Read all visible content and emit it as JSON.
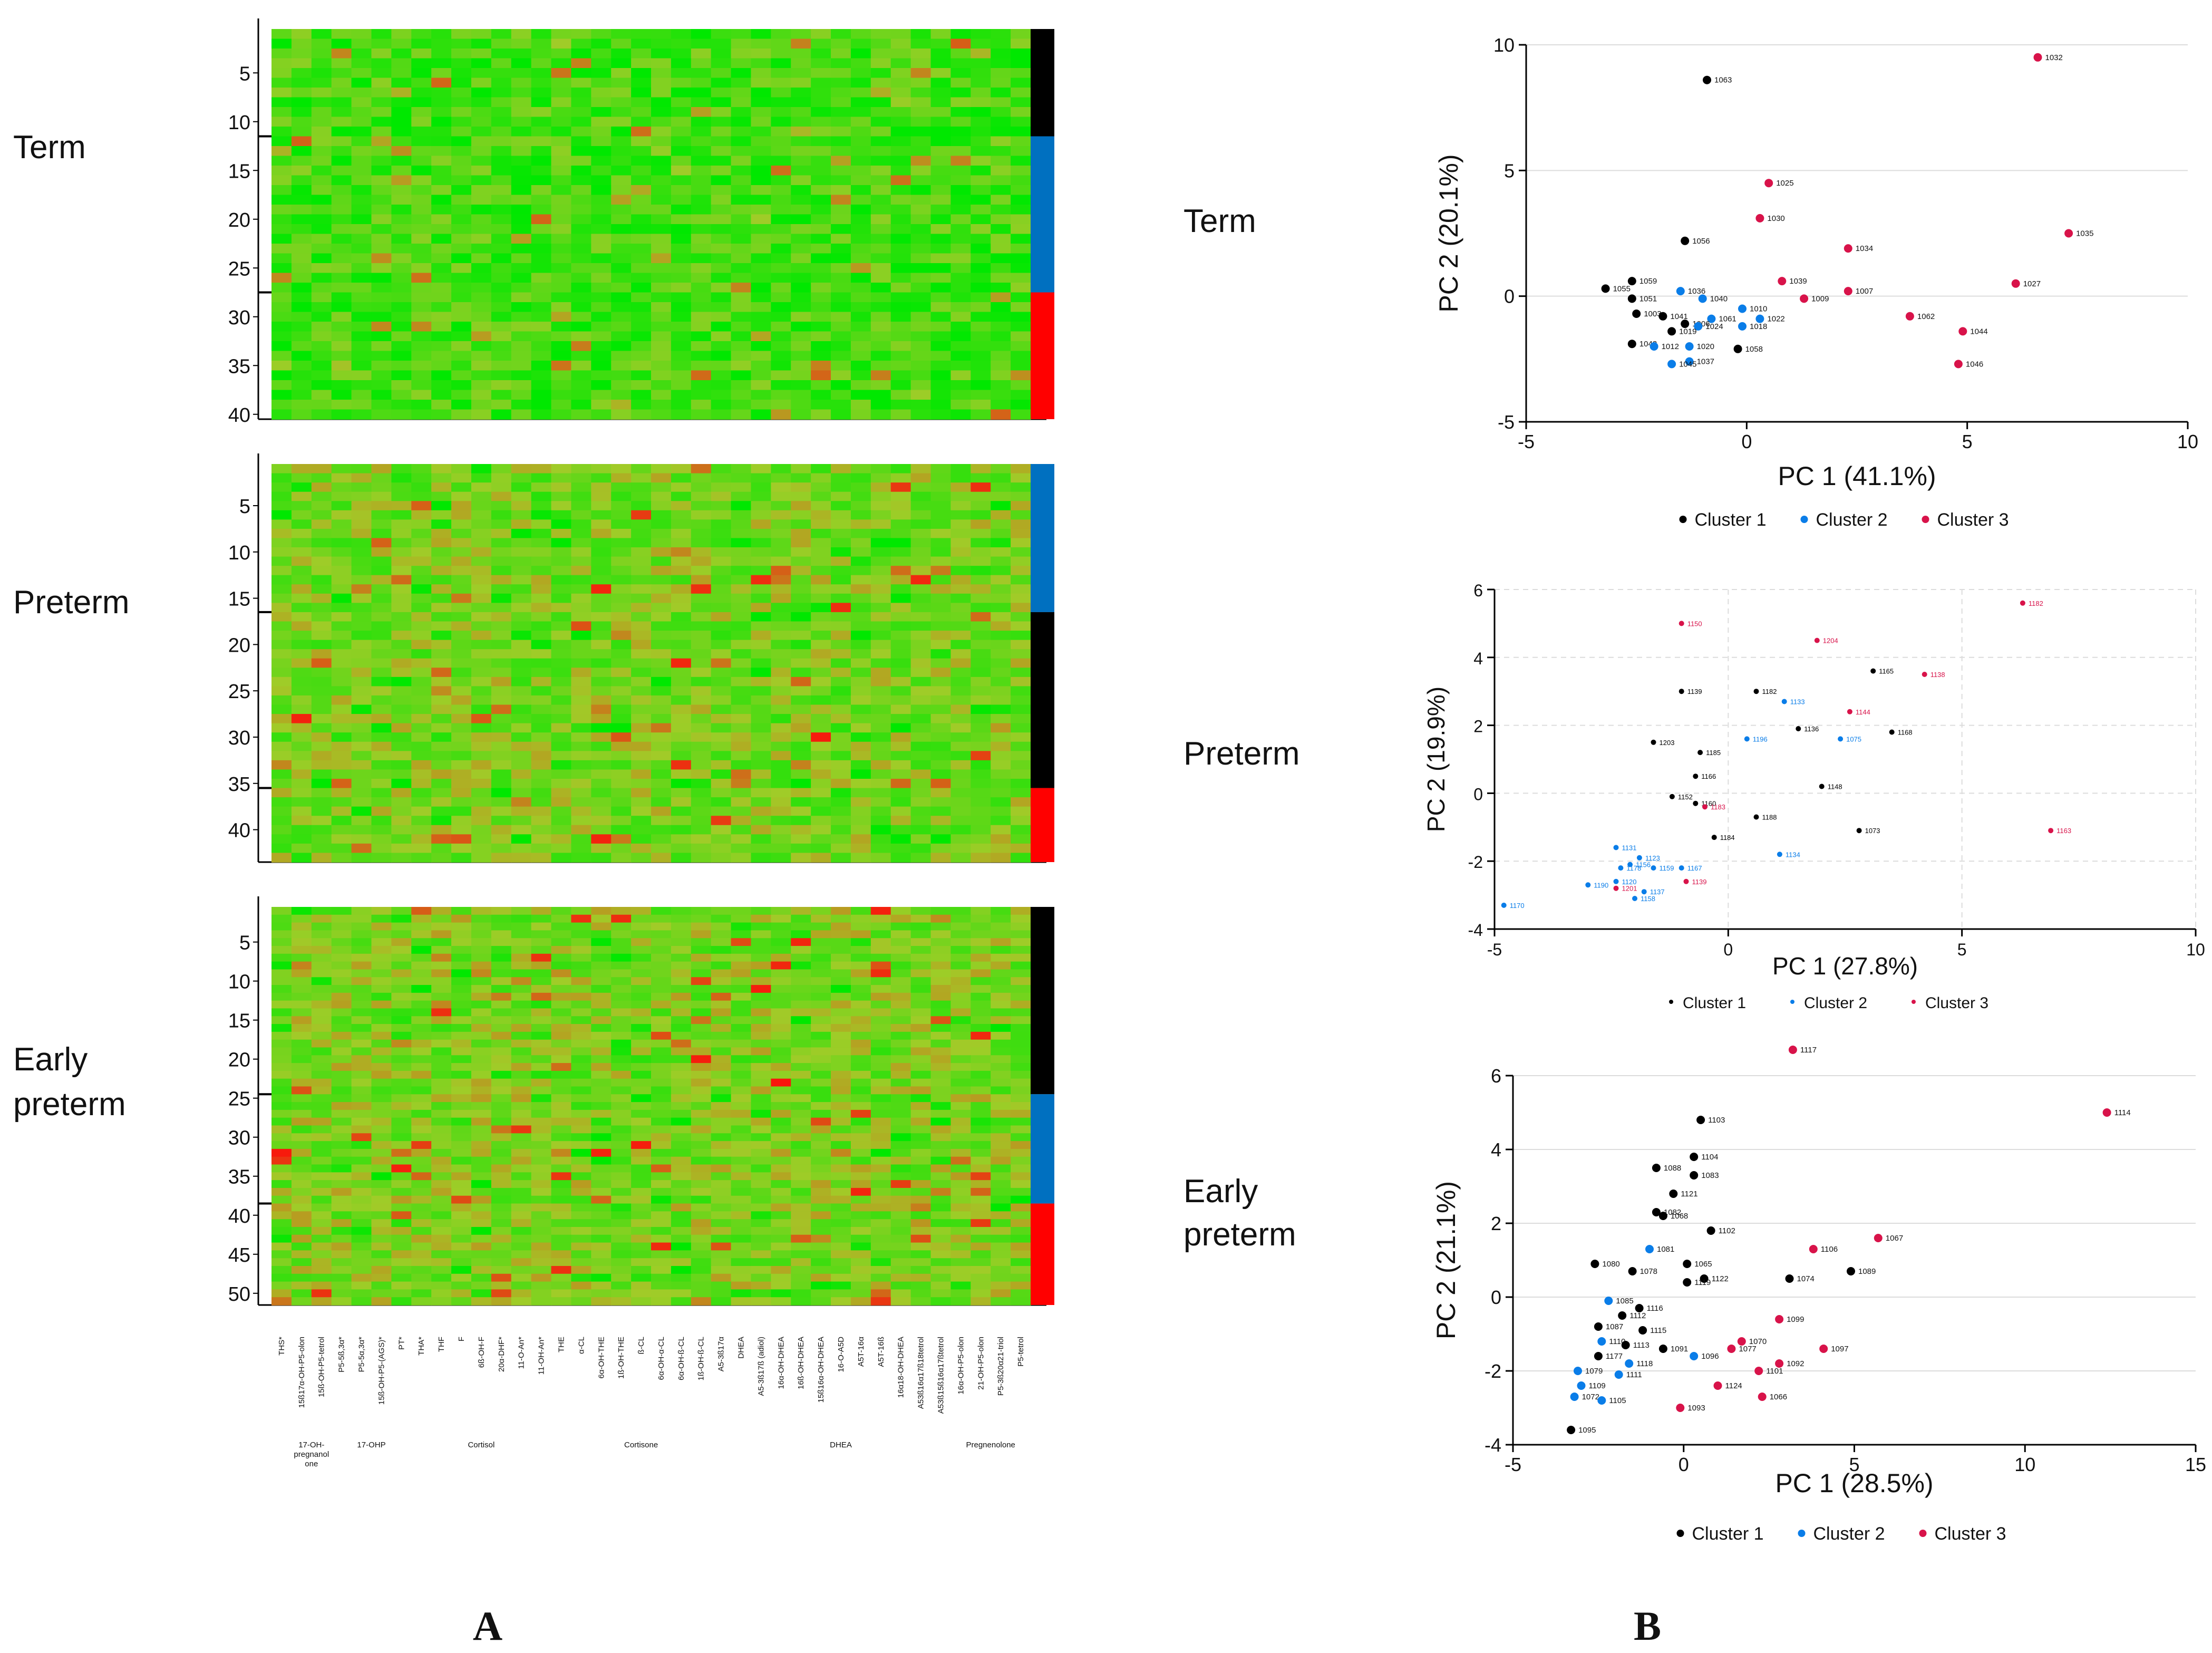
{
  "panel_a": {
    "letter": "A",
    "heatmaps": [
      {
        "group": [
          "Term"
        ],
        "yticks": [
          "5",
          "10",
          "15",
          "20",
          "25",
          "30",
          "35",
          "40"
        ],
        "rows": 40,
        "clusters": [
          {
            "color": "#000000",
            "n": 11
          },
          {
            "color": "#0070c0",
            "n": 16
          },
          {
            "color": "#ff0000",
            "n": 13
          }
        ]
      },
      {
        "group": [
          "Preterm"
        ],
        "yticks": [
          "5",
          "10",
          "15",
          "20",
          "25",
          "30",
          "35",
          "40"
        ],
        "rows": 43,
        "clusters": [
          {
            "color": "#0070c0",
            "n": 16
          },
          {
            "color": "#000000",
            "n": 19
          },
          {
            "color": "#ff0000",
            "n": 8
          }
        ]
      },
      {
        "group": [
          "Early",
          "preterm"
        ],
        "yticks": [
          "5",
          "10",
          "15",
          "20",
          "25",
          "30",
          "35",
          "40",
          "45",
          "50"
        ],
        "rows": 51,
        "clusters": [
          {
            "color": "#000000",
            "n": 24
          },
          {
            "color": "#0070c0",
            "n": 14
          },
          {
            "color": "#ff0000",
            "n": 13
          }
        ]
      }
    ],
    "columns": [
      "THS*",
      "15ß17α-OH-P5-olon",
      "15ß-OH-P5-tetrol",
      "P5-5ß,3α*",
      "P5-5α,3α*",
      "15ß-OH-P5-(AGS)*",
      "PT*",
      "THA*",
      "THF",
      "F",
      "6ß-OH-F",
      "20α-DHF*",
      "11-O-An*",
      "11-OH-An*",
      "THE",
      "α-CL",
      "6α-OH-THE",
      "1ß-OH-THE",
      "ß-CL",
      "6α-OH-α-CL",
      "6α-OH-ß-CL",
      "1ß-OH-ß-CL",
      "A5-3ß17α",
      "DHEA",
      "A5-3ß17ß (adiol)",
      "16α-OH-DHEA",
      "16ß-OH-DHEA",
      "15ß16α-OH-DHEA",
      "16-O-A5D",
      "A5T-16α",
      "A5T-16ß",
      "16α18-OH-DHEA",
      "A53ß16α17ß18tetrol",
      "A53ß15ß16α17ßtetrol",
      "16α-OH-P5-olon",
      "21-OH-P5-olon",
      "P5-3ß20α21-triol",
      "P5-tetrol"
    ],
    "column_groups": [
      {
        "label": [
          "17-OH-",
          "pregnanol",
          "one"
        ],
        "start": 1,
        "end": 2
      },
      {
        "label": [
          "17-OHP"
        ],
        "start": 3,
        "end": 6
      },
      {
        "label": [
          "Cortisol"
        ],
        "start": 7,
        "end": 13
      },
      {
        "label": [
          "Cortisone"
        ],
        "start": 14,
        "end": 22
      },
      {
        "label": [
          "DHEA"
        ],
        "start": 23,
        "end": 33
      },
      {
        "label": [
          "Pregnenolone"
        ],
        "start": 34,
        "end": 37
      }
    ]
  },
  "panel_b": {
    "letter": "B",
    "group_labels": [
      [
        "Term"
      ],
      [
        "Preterm"
      ],
      [
        "Early",
        "preterm"
      ]
    ],
    "cluster_colors": [
      "#000000",
      "#0a7de8",
      "#d8134a"
    ]
  },
  "chart_data": [
    {
      "type": "scatter",
      "title": "Term",
      "xlabel": "PC 1 (41.1%)",
      "ylabel": "PC 2 (20.1%)",
      "xlim": [
        -5,
        10
      ],
      "ylim": [
        -5,
        10
      ],
      "xticks": [
        -5,
        0,
        5,
        10
      ],
      "yticks": [
        -5,
        0,
        5,
        10
      ],
      "legend": [
        "Cluster 1",
        "Cluster 2",
        "Cluster 3"
      ],
      "grid": "dashed",
      "points": [
        {
          "label": "1063",
          "x": -0.9,
          "y": 8.6,
          "c": 1
        },
        {
          "label": "1032",
          "x": 6.6,
          "y": 9.5,
          "c": 3
        },
        {
          "label": "1025",
          "x": 0.5,
          "y": 4.5,
          "c": 3
        },
        {
          "label": "1030",
          "x": 0.3,
          "y": 3.1,
          "c": 3
        },
        {
          "label": "1035",
          "x": 7.3,
          "y": 2.5,
          "c": 3
        },
        {
          "label": "1056",
          "x": -1.4,
          "y": 2.2,
          "c": 1
        },
        {
          "label": "1034",
          "x": 2.3,
          "y": 1.9,
          "c": 3
        },
        {
          "label": "1059",
          "x": -2.6,
          "y": 0.6,
          "c": 1
        },
        {
          "label": "1039",
          "x": 0.8,
          "y": 0.6,
          "c": 3
        },
        {
          "label": "1027",
          "x": 6.1,
          "y": 0.5,
          "c": 3
        },
        {
          "label": "1055",
          "x": -3.2,
          "y": 0.3,
          "c": 1
        },
        {
          "label": "1036",
          "x": -1.5,
          "y": 0.2,
          "c": 2
        },
        {
          "label": "1007",
          "x": 2.3,
          "y": 0.2,
          "c": 3
        },
        {
          "label": "1051",
          "x": -2.6,
          "y": -0.1,
          "c": 1
        },
        {
          "label": "1040",
          "x": -1.0,
          "y": -0.1,
          "c": 2
        },
        {
          "label": "1009",
          "x": 1.3,
          "y": -0.1,
          "c": 3
        },
        {
          "label": "1010",
          "x": -0.1,
          "y": -0.5,
          "c": 2
        },
        {
          "label": "1003",
          "x": -2.5,
          "y": -0.7,
          "c": 1
        },
        {
          "label": "1062",
          "x": 3.7,
          "y": -0.8,
          "c": 3
        },
        {
          "label": "1041",
          "x": -1.9,
          "y": -0.8,
          "c": 1
        },
        {
          "label": "1061",
          "x": -0.8,
          "y": -0.9,
          "c": 2
        },
        {
          "label": "1022",
          "x": 0.3,
          "y": -0.9,
          "c": 2
        },
        {
          "label": "1006",
          "x": -1.4,
          "y": -1.1,
          "c": 1
        },
        {
          "label": "1024",
          "x": -1.1,
          "y": -1.2,
          "c": 2
        },
        {
          "label": "1018",
          "x": -0.1,
          "y": -1.2,
          "c": 2
        },
        {
          "label": "1019",
          "x": -1.7,
          "y": -1.4,
          "c": 1
        },
        {
          "label": "1044",
          "x": 4.9,
          "y": -1.4,
          "c": 3
        },
        {
          "label": "1043",
          "x": -2.6,
          "y": -1.9,
          "c": 1
        },
        {
          "label": "1012",
          "x": -2.1,
          "y": -2.0,
          "c": 2
        },
        {
          "label": "1020",
          "x": -1.3,
          "y": -2.0,
          "c": 2
        },
        {
          "label": "1058",
          "x": -0.2,
          "y": -2.1,
          "c": 1
        },
        {
          "label": "1037",
          "x": -1.3,
          "y": -2.6,
          "c": 2
        },
        {
          "label": "1045",
          "x": -1.7,
          "y": -2.7,
          "c": 2
        },
        {
          "label": "1046",
          "x": 4.8,
          "y": -2.7,
          "c": 3
        }
      ]
    },
    {
      "type": "scatter",
      "title": "Preterm",
      "xlabel": "PC 1 (27.8%)",
      "ylabel": "PC 2 (19.9%)",
      "xlim": [
        -5,
        10
      ],
      "ylim": [
        -4,
        6
      ],
      "xticks": [
        -5,
        0,
        5,
        10
      ],
      "yticks": [
        -4,
        -2,
        0,
        2,
        4,
        6
      ],
      "legend": [
        "Cluster 1",
        "Cluster 2",
        "Cluster 3"
      ],
      "grid": "dashed",
      "points": [
        {
          "label": "1182",
          "x": 6.3,
          "y": 5.6,
          "c": 3
        },
        {
          "label": "1150",
          "x": -1.0,
          "y": 5.0,
          "c": 3
        },
        {
          "label": "1204",
          "x": 1.9,
          "y": 4.5,
          "c": 3
        },
        {
          "label": "1165",
          "x": 3.1,
          "y": 3.6,
          "c": 1
        },
        {
          "label": "1138",
          "x": 4.2,
          "y": 3.5,
          "c": 3
        },
        {
          "label": "1139",
          "x": -1.0,
          "y": 3.0,
          "c": 1
        },
        {
          "label": "1182",
          "x": 0.6,
          "y": 3.0,
          "c": 1
        },
        {
          "label": "1133",
          "x": 1.2,
          "y": 2.7,
          "c": 2
        },
        {
          "label": "1144",
          "x": 2.6,
          "y": 2.4,
          "c": 3
        },
        {
          "label": "1136",
          "x": 1.5,
          "y": 1.9,
          "c": 1
        },
        {
          "label": "1168",
          "x": 3.5,
          "y": 1.8,
          "c": 1
        },
        {
          "label": "1075",
          "x": 2.4,
          "y": 1.6,
          "c": 2
        },
        {
          "label": "1203",
          "x": -1.6,
          "y": 1.5,
          "c": 1
        },
        {
          "label": "1196",
          "x": 0.4,
          "y": 1.6,
          "c": 2
        },
        {
          "label": "1185",
          "x": -0.6,
          "y": 1.2,
          "c": 1
        },
        {
          "label": "1166",
          "x": -0.7,
          "y": 0.5,
          "c": 1
        },
        {
          "label": "1148",
          "x": 2.0,
          "y": 0.2,
          "c": 1
        },
        {
          "label": "1152",
          "x": -1.2,
          "y": -0.1,
          "c": 1
        },
        {
          "label": "1160",
          "x": -0.7,
          "y": -0.3,
          "c": 1
        },
        {
          "label": "1183",
          "x": -0.5,
          "y": -0.4,
          "c": 3
        },
        {
          "label": "1188",
          "x": 0.6,
          "y": -0.7,
          "c": 1
        },
        {
          "label": "1163",
          "x": 6.9,
          "y": -1.1,
          "c": 3
        },
        {
          "label": "1073",
          "x": 2.8,
          "y": -1.1,
          "c": 1
        },
        {
          "label": "1184",
          "x": -0.3,
          "y": -1.3,
          "c": 1
        },
        {
          "label": "1131",
          "x": -2.4,
          "y": -1.6,
          "c": 2
        },
        {
          "label": "1123",
          "x": -1.9,
          "y": -1.9,
          "c": 2
        },
        {
          "label": "1134",
          "x": 1.1,
          "y": -1.8,
          "c": 2
        },
        {
          "label": "1156",
          "x": -2.1,
          "y": -2.1,
          "c": 2
        },
        {
          "label": "1178",
          "x": -2.3,
          "y": -2.2,
          "c": 2
        },
        {
          "label": "1159",
          "x": -1.6,
          "y": -2.2,
          "c": 2
        },
        {
          "label": "1167",
          "x": -1.0,
          "y": -2.2,
          "c": 2
        },
        {
          "label": "1190",
          "x": -3.0,
          "y": -2.7,
          "c": 2
        },
        {
          "label": "1120",
          "x": -2.4,
          "y": -2.6,
          "c": 2
        },
        {
          "label": "1201",
          "x": -2.4,
          "y": -2.8,
          "c": 3
        },
        {
          "label": "1137",
          "x": -1.8,
          "y": -2.9,
          "c": 2
        },
        {
          "label": "1139",
          "x": -0.9,
          "y": -2.6,
          "c": 3
        },
        {
          "label": "1158",
          "x": -2.0,
          "y": -3.1,
          "c": 2
        },
        {
          "label": "1170",
          "x": -4.8,
          "y": -3.3,
          "c": 2
        }
      ]
    },
    {
      "type": "scatter",
      "title": "Early preterm",
      "xlabel": "PC 1 (28.5%)",
      "ylabel": "PC 2 (21.1%)",
      "xlim": [
        -5,
        15
      ],
      "ylim": [
        -4,
        6
      ],
      "xticks": [
        -5,
        0,
        5,
        10,
        15
      ],
      "yticks": [
        -4,
        -2,
        0,
        2,
        4,
        6
      ],
      "legend": [
        "Cluster 1",
        "Cluster 2",
        "Cluster 3"
      ],
      "grid": "dashed",
      "points": [
        {
          "label": "1117",
          "x": 3.2,
          "y": 6.7,
          "c": 3
        },
        {
          "label": "1114",
          "x": 12.4,
          "y": 5.0,
          "c": 3
        },
        {
          "label": "1103",
          "x": 0.5,
          "y": 4.8,
          "c": 1
        },
        {
          "label": "1104",
          "x": 0.3,
          "y": 3.8,
          "c": 1
        },
        {
          "label": "1088",
          "x": -0.8,
          "y": 3.5,
          "c": 1
        },
        {
          "label": "1083",
          "x": 0.3,
          "y": 3.3,
          "c": 1
        },
        {
          "label": "1121",
          "x": -0.3,
          "y": 2.8,
          "c": 1
        },
        {
          "label": "1082",
          "x": -0.8,
          "y": 2.3,
          "c": 1
        },
        {
          "label": "1068",
          "x": -0.6,
          "y": 2.2,
          "c": 1
        },
        {
          "label": "1102",
          "x": 0.8,
          "y": 1.8,
          "c": 1
        },
        {
          "label": "1067",
          "x": 5.7,
          "y": 1.6,
          "c": 3
        },
        {
          "label": "1081",
          "x": -1.0,
          "y": 1.3,
          "c": 2
        },
        {
          "label": "1106",
          "x": 3.8,
          "y": 1.3,
          "c": 3
        },
        {
          "label": "1080",
          "x": -2.6,
          "y": 0.9,
          "c": 1
        },
        {
          "label": "1065",
          "x": 0.1,
          "y": 0.9,
          "c": 1
        },
        {
          "label": "1089",
          "x": 4.9,
          "y": 0.7,
          "c": 1
        },
        {
          "label": "1078",
          "x": -1.5,
          "y": 0.7,
          "c": 1
        },
        {
          "label": "1074",
          "x": 3.1,
          "y": 0.5,
          "c": 1
        },
        {
          "label": "1122",
          "x": 0.6,
          "y": 0.5,
          "c": 1
        },
        {
          "label": "1119",
          "x": 0.1,
          "y": 0.4,
          "c": 1
        },
        {
          "label": "1085",
          "x": -2.2,
          "y": -0.1,
          "c": 2
        },
        {
          "label": "1116",
          "x": -1.3,
          "y": -0.3,
          "c": 1
        },
        {
          "label": "1112",
          "x": -1.8,
          "y": -0.5,
          "c": 1
        },
        {
          "label": "1099",
          "x": 2.8,
          "y": -0.6,
          "c": 3
        },
        {
          "label": "1087",
          "x": -2.5,
          "y": -0.8,
          "c": 1
        },
        {
          "label": "1115",
          "x": -1.2,
          "y": -0.9,
          "c": 1
        },
        {
          "label": "1110",
          "x": -2.4,
          "y": -1.2,
          "c": 2
        },
        {
          "label": "1113",
          "x": -1.7,
          "y": -1.3,
          "c": 1
        },
        {
          "label": "1091",
          "x": -0.6,
          "y": -1.4,
          "c": 1
        },
        {
          "label": "1070",
          "x": 1.7,
          "y": -1.2,
          "c": 3
        },
        {
          "label": "1077",
          "x": 1.4,
          "y": -1.4,
          "c": 3
        },
        {
          "label": "1097",
          "x": 4.1,
          "y": -1.4,
          "c": 3
        },
        {
          "label": "1177",
          "x": -2.5,
          "y": -1.6,
          "c": 1
        },
        {
          "label": "1096",
          "x": 0.3,
          "y": -1.6,
          "c": 2
        },
        {
          "label": "1118",
          "x": -1.6,
          "y": -1.8,
          "c": 2
        },
        {
          "label": "1092",
          "x": 2.8,
          "y": -1.8,
          "c": 3
        },
        {
          "label": "1079",
          "x": -3.1,
          "y": -2.0,
          "c": 2
        },
        {
          "label": "1111",
          "x": -1.9,
          "y": -2.1,
          "c": 2
        },
        {
          "label": "1101",
          "x": 2.2,
          "y": -2.0,
          "c": 3
        },
        {
          "label": "1109",
          "x": -3.0,
          "y": -2.4,
          "c": 2
        },
        {
          "label": "1124",
          "x": 1.0,
          "y": -2.4,
          "c": 3
        },
        {
          "label": "1072",
          "x": -3.2,
          "y": -2.7,
          "c": 2
        },
        {
          "label": "1105",
          "x": -2.4,
          "y": -2.8,
          "c": 2
        },
        {
          "label": "1066",
          "x": 2.3,
          "y": -2.7,
          "c": 3
        },
        {
          "label": "1093",
          "x": -0.1,
          "y": -3.0,
          "c": 3
        },
        {
          "label": "1095",
          "x": -3.3,
          "y": -3.6,
          "c": 1
        }
      ]
    }
  ]
}
